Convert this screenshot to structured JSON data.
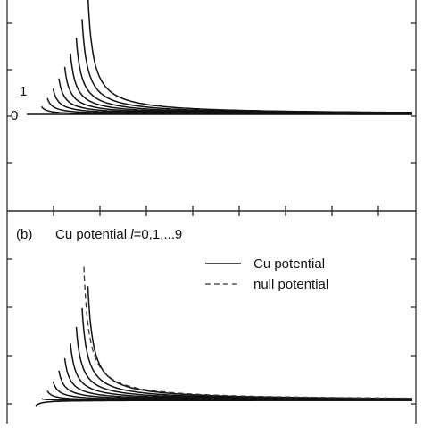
{
  "chart_data": [
    {
      "type": "line",
      "title": "",
      "xlabel": "",
      "ylabel": "",
      "curve_labels": [
        "0",
        "1"
      ],
      "series": [
        {
          "l": 0,
          "scale": 0.0
        },
        {
          "l": 1,
          "scale": 0.25
        },
        {
          "l": 2,
          "scale": 0.52
        },
        {
          "l": 3,
          "scale": 0.82
        },
        {
          "l": 4,
          "scale": 1.15
        },
        {
          "l": 5,
          "scale": 1.52
        },
        {
          "l": 6,
          "scale": 1.95
        },
        {
          "l": 7,
          "scale": 2.45
        },
        {
          "l": 8,
          "scale": 3.05
        },
        {
          "l": 9,
          "scale": 3.8
        }
      ]
    },
    {
      "type": "line",
      "panel_label": "(b)",
      "title_prefix": "Cu potential ",
      "title_italic": "l",
      "title_suffix": "=0,1,...9",
      "xlabel": "",
      "ylabel": "",
      "legend": {
        "position": "top-right",
        "entries": [
          {
            "label": "Cu potential",
            "style": "solid"
          },
          {
            "label": "null potential",
            "style": "dashed"
          }
        ]
      },
      "series": [
        {
          "l": 0,
          "scale": -0.18,
          "type": "Cu potential"
        },
        {
          "l": 1,
          "scale": 0.05,
          "type": "Cu potential"
        },
        {
          "l": 2,
          "scale": 0.3,
          "type": "Cu potential"
        },
        {
          "l": 3,
          "scale": 0.6,
          "type": "Cu potential"
        },
        {
          "l": 4,
          "scale": 0.95,
          "type": "Cu potential"
        },
        {
          "l": 5,
          "scale": 1.35,
          "type": "Cu potential"
        },
        {
          "l": 6,
          "scale": 1.82,
          "type": "Cu potential"
        },
        {
          "l": 7,
          "scale": 2.35,
          "type": "Cu potential"
        },
        {
          "l": 8,
          "scale": 2.95,
          "type": "Cu potential"
        },
        {
          "l": 9,
          "scale": 3.65,
          "type": "Cu potential"
        },
        {
          "l": 9,
          "scale": 3.9,
          "type": "null potential"
        }
      ]
    }
  ]
}
